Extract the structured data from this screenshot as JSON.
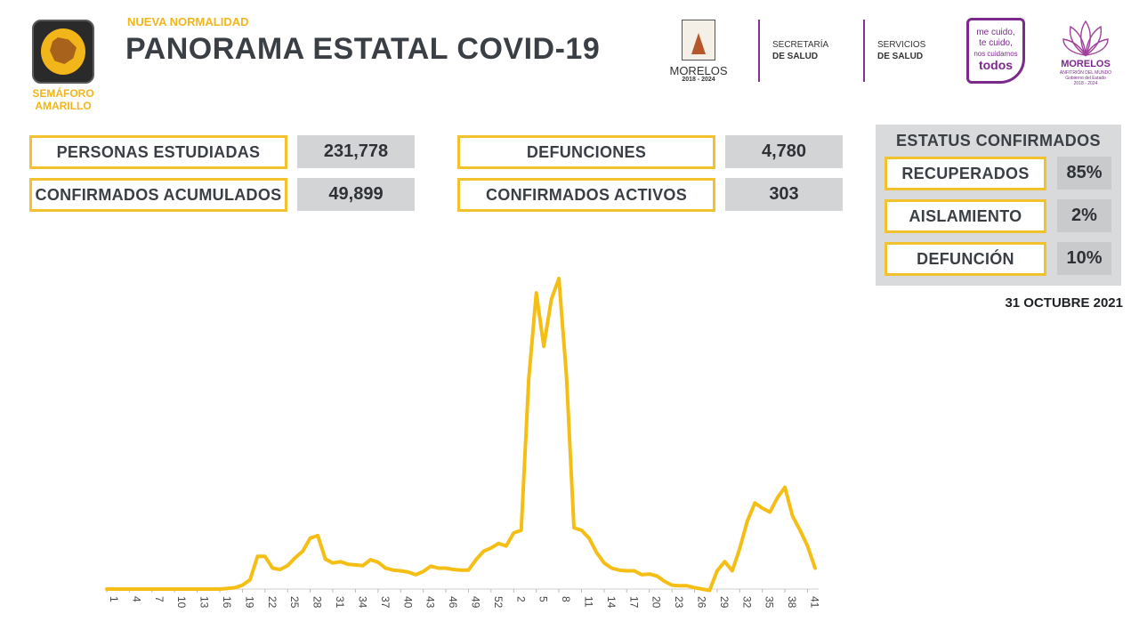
{
  "header": {
    "semaforo_label": "SEMÁFORO AMARILLO",
    "subtitle": "NUEVA NORMALIDAD",
    "title": "PANORAMA ESTATAL COVID-19",
    "morelos_label": "MORELOS",
    "morelos_years": "2018 - 2024",
    "secretaria_line1": "SECRETARÍA",
    "secretaria_line2": "DE SALUD",
    "servicios_line1": "SERVICIOS",
    "servicios_line2": "DE SALUD",
    "badge_line1": "me cuido,",
    "badge_line2": "te cuido,",
    "badge_line3": "nos cuidamos",
    "badge_line4": "todos",
    "lotus_label": "MORELOS",
    "lotus_sub1": "ANFITRIÓN DEL MUNDO",
    "lotus_sub2": "Gobierno del Estado",
    "lotus_sub3": "2018 - 2024"
  },
  "stats": {
    "personas_estudiadas_label": "PERSONAS ESTUDIADAS",
    "personas_estudiadas_value": "231,778",
    "confirmados_acumulados_label": "CONFIRMADOS ACUMULADOS",
    "confirmados_acumulados_value": "49,899",
    "defunciones_label": "DEFUNCIONES",
    "defunciones_value": "4,780",
    "confirmados_activos_label": "CONFIRMADOS ACTIVOS",
    "confirmados_activos_value": "303"
  },
  "status": {
    "title": "ESTATUS CONFIRMADOS",
    "recuperados_label": "RECUPERADOS",
    "recuperados_value": "85%",
    "aislamiento_label": "AISLAMIENTO",
    "aislamiento_value": "2%",
    "defuncion_label": "DEFUNCIÓN",
    "defuncion_value": "10%"
  },
  "date": "31 OCTUBRE 2021",
  "colors": {
    "accent_yellow": "#f2c12e",
    "line_color": "#f5be14",
    "text_dark": "#3a3f45",
    "value_bg": "#d3d4d6",
    "brand_purple": "#7b2a8c"
  },
  "chart_data": {
    "type": "line",
    "title": "",
    "xlabel": "",
    "ylabel": "",
    "grid": false,
    "ylim": [
      0,
      2400
    ],
    "x_tick_labels": [
      "1",
      "4",
      "7",
      "10",
      "13",
      "16",
      "19",
      "22",
      "25",
      "28",
      "31",
      "34",
      "37",
      "40",
      "43",
      "46",
      "49",
      "52",
      "2",
      "5",
      "8",
      "11",
      "14",
      "17",
      "20",
      "23",
      "26",
      "29",
      "32",
      "35",
      "38",
      "41"
    ],
    "series": [
      {
        "values": [
          0,
          0,
          0,
          0,
          0,
          0,
          0,
          0,
          0,
          0,
          0,
          0,
          0,
          0,
          0,
          0,
          5,
          10,
          30,
          70,
          250,
          250,
          160,
          150,
          180,
          240,
          290,
          390,
          410,
          230,
          200,
          210,
          190,
          185,
          180,
          225,
          205,
          160,
          145,
          140,
          130,
          110,
          135,
          175,
          160,
          160,
          150,
          145,
          145,
          225,
          290,
          315,
          350,
          330,
          430,
          450,
          1610,
          2270,
          1860,
          2220,
          2380,
          1630,
          470,
          450,
          390,
          280,
          200,
          160,
          145,
          140,
          140,
          110,
          115,
          100,
          60,
          30,
          25,
          25,
          10,
          0,
          -10,
          140,
          210,
          140,
          310,
          520,
          660,
          620,
          590,
          700,
          780,
          560,
          450,
          330,
          160
        ]
      }
    ]
  }
}
